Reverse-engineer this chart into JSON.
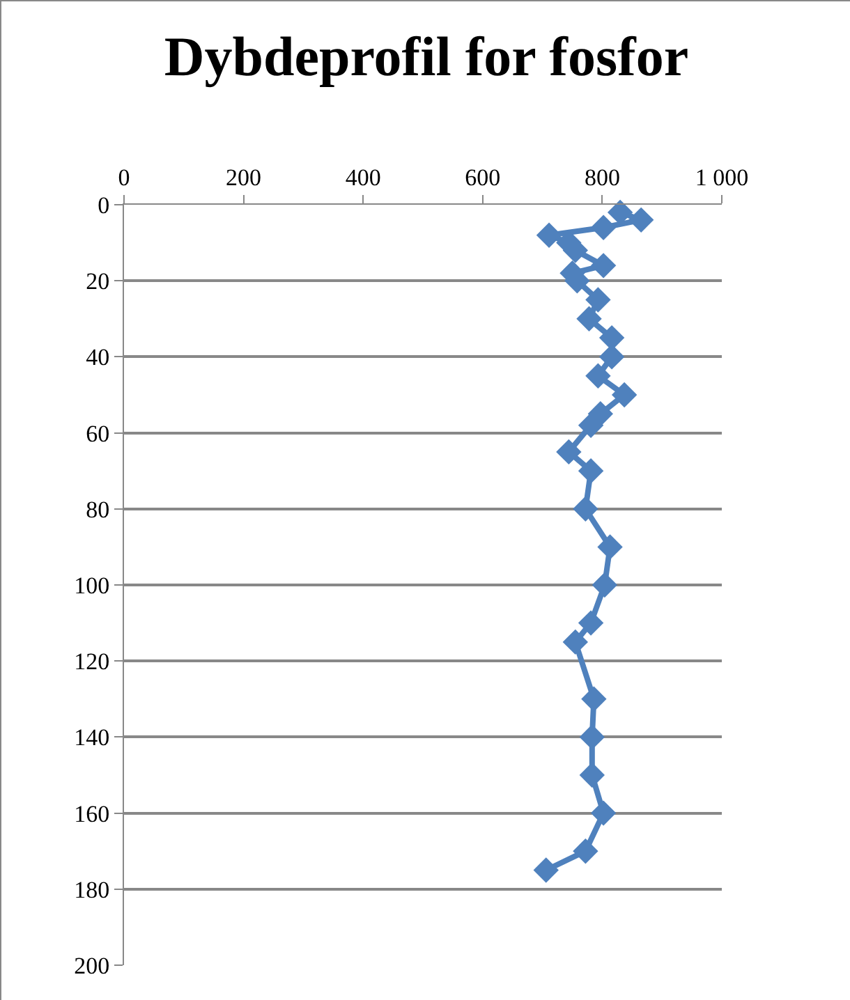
{
  "chart_data": {
    "type": "line",
    "title": "Dybdeprofil for fosfor",
    "x": [
      830,
      865,
      802,
      711,
      744,
      755,
      802,
      750,
      758,
      793,
      778,
      816,
      816,
      793,
      837,
      797,
      781,
      744,
      781,
      772,
      813,
      804,
      781,
      755,
      786,
      783,
      783,
      802,
      772,
      706
    ],
    "values": [
      2,
      4,
      6,
      8,
      10,
      12,
      16,
      18,
      20,
      25,
      30,
      35,
      40,
      45,
      50,
      55,
      58,
      65,
      70,
      80,
      90,
      100,
      110,
      115,
      130,
      140,
      150,
      160,
      170,
      175
    ],
    "color": "#4f81bd",
    "marker": "diamond",
    "line_style": "solid",
    "xlim": [
      0,
      1000
    ],
    "xticks": [
      0,
      200,
      400,
      600,
      800,
      {
        "value": 1000,
        "label": "1 000"
      }
    ],
    "ylim": [
      200,
      0
    ],
    "yticks": [
      0,
      20,
      40,
      60,
      80,
      100,
      120,
      140,
      160,
      180,
      200
    ],
    "grid": "y"
  }
}
